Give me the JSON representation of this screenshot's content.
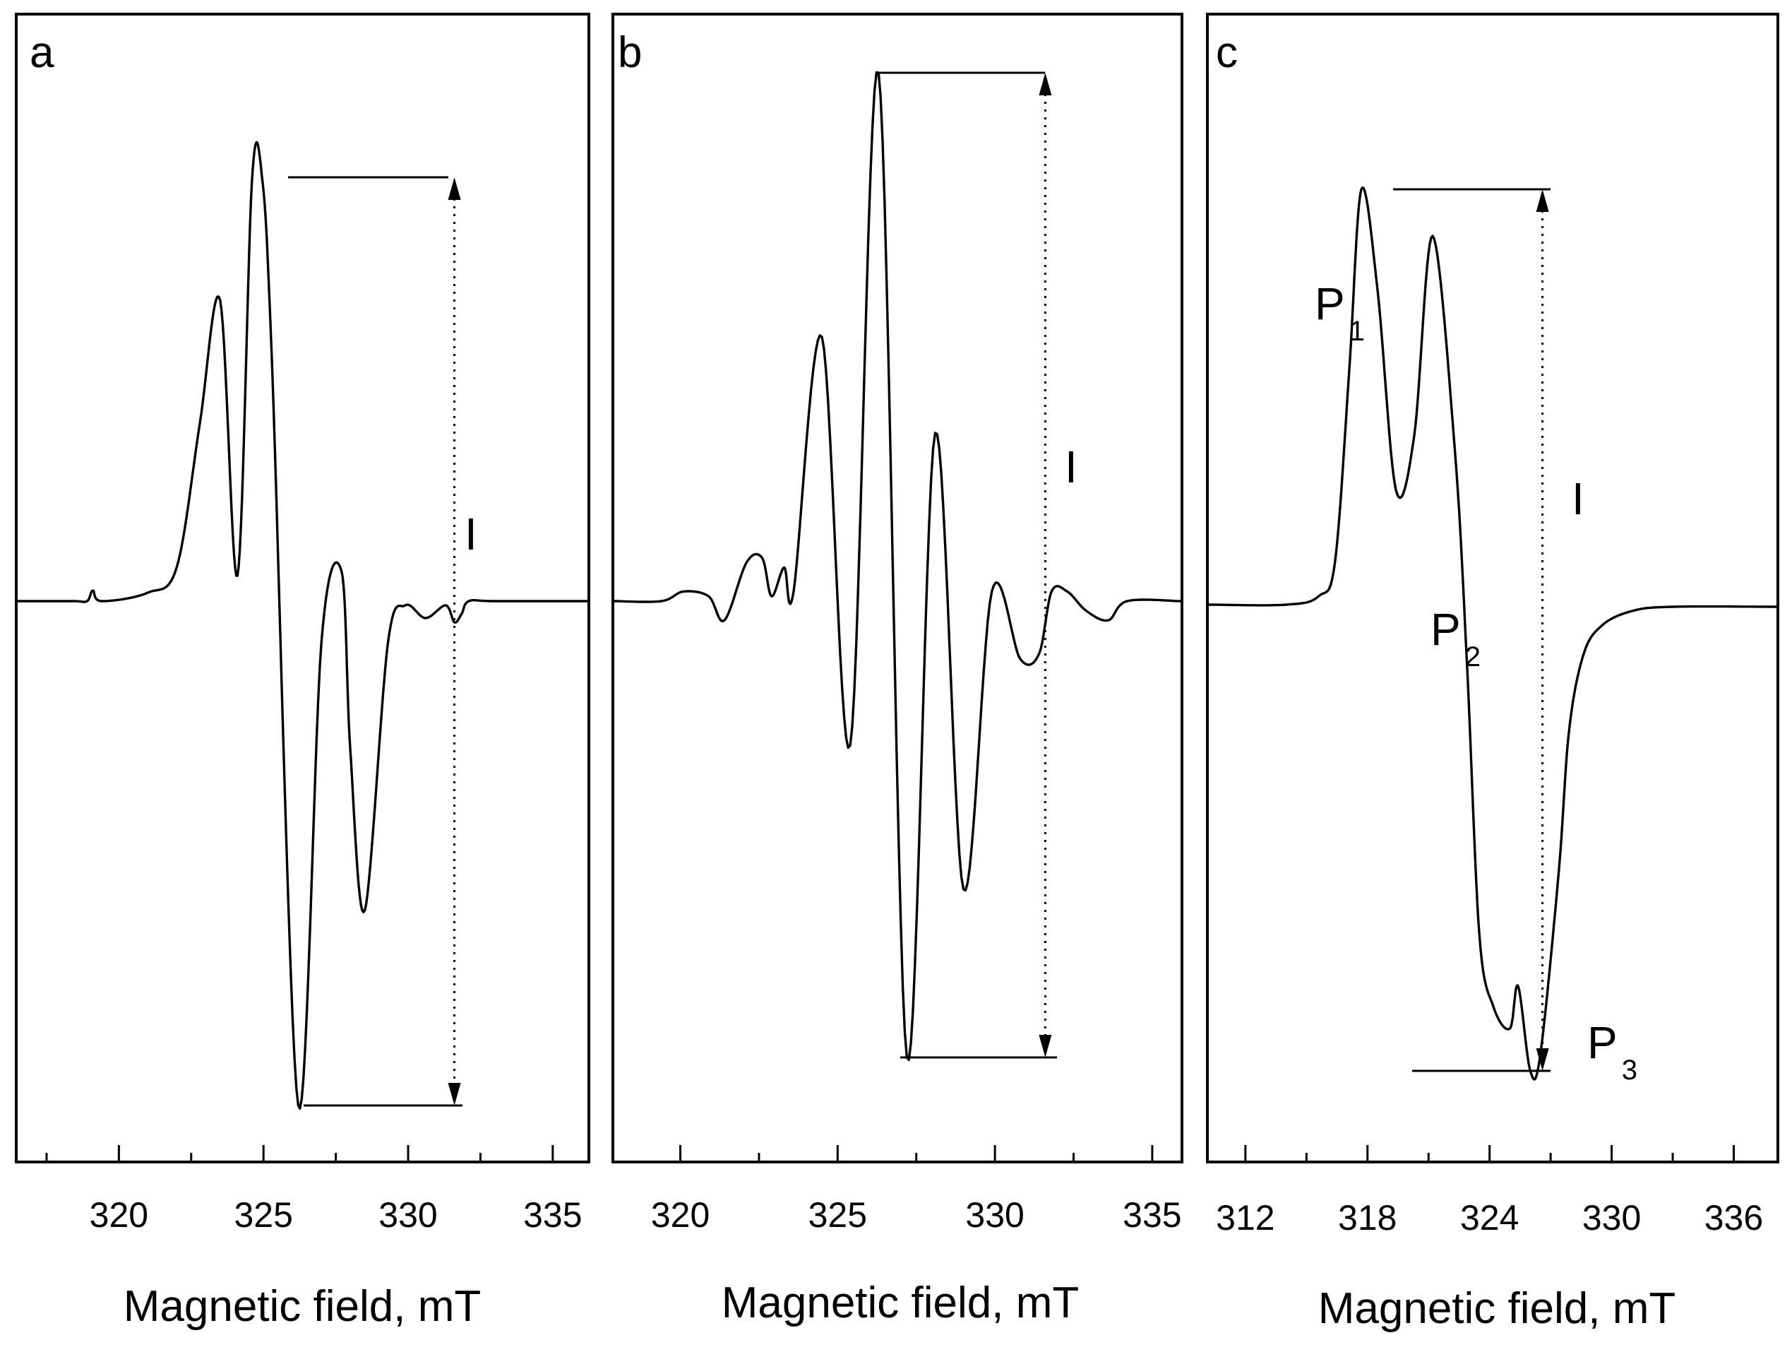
{
  "chart_data": [
    {
      "type": "line",
      "panel_label": "a",
      "xlabel": "Magnetic field, mT",
      "ylabel": "",
      "xlim": [
        316.5,
        336.2
      ],
      "xticks": [
        320,
        325,
        330,
        335
      ],
      "tick_labels": [
        "320",
        "325",
        "330",
        "335"
      ],
      "annotation": "I",
      "x": [
        316.5,
        318.4,
        318.9,
        319.1,
        319.4,
        321.0,
        322.0,
        322.8,
        323.5,
        324.1,
        324.6,
        324.95,
        325.3,
        326.2,
        327.0,
        327.7,
        328.0,
        328.5,
        329.3,
        329.9,
        330.6,
        331.3,
        331.6,
        331.85,
        332.1,
        333.0,
        336.2
      ],
      "y": [
        0,
        0,
        0,
        0.025,
        0,
        0.02,
        0.08,
        0.42,
        0.71,
        0.06,
        0.99,
        1.0,
        0.55,
        -1.19,
        -0.1,
        0.07,
        -0.35,
        -0.73,
        -0.1,
        -0.01,
        -0.04,
        -0.01,
        -0.05,
        -0.03,
        0,
        0,
        0
      ],
      "range_markers": {
        "x": 331.6,
        "top": 1.0,
        "bottom": -1.19
      }
    },
    {
      "type": "line",
      "panel_label": "b",
      "xlabel": "Magnetic field, mT",
      "ylabel": "",
      "xlim": [
        317.9,
        335.9
      ],
      "xticks": [
        320,
        325,
        330,
        335
      ],
      "tick_labels": [
        "320",
        "325",
        "330",
        "335"
      ],
      "annotation": "I",
      "x": [
        317.9,
        319.4,
        320.1,
        320.9,
        321.4,
        322.1,
        322.6,
        322.9,
        323.3,
        323.6,
        324.5,
        325.4,
        326.3,
        327.2,
        328.1,
        329.0,
        329.9,
        330.8,
        331.4,
        331.8,
        332.3,
        332.9,
        333.6,
        334.2,
        335.9
      ],
      "y": [
        0,
        0,
        0.02,
        0.01,
        -0.04,
        0.08,
        0.09,
        0.01,
        0.07,
        0.02,
        0.55,
        -0.3,
        1.1,
        -0.95,
        0.35,
        -0.6,
        0.02,
        -0.12,
        -0.11,
        0.02,
        0.02,
        -0.02,
        -0.04,
        0,
        0
      ],
      "range_markers": {
        "x": 331.6,
        "top": 1.1,
        "bottom": -0.95
      }
    },
    {
      "type": "line",
      "panel_label": "c",
      "xlabel": "Magnetic field, mT",
      "ylabel": "",
      "xlim": [
        310.2,
        338.1
      ],
      "xticks": [
        312,
        318,
        324,
        330,
        336
      ],
      "tick_labels": [
        "312",
        "318",
        "324",
        "330",
        "336"
      ],
      "annotation": "I",
      "x": [
        310.2,
        314.0,
        315.6,
        316.4,
        317.1,
        317.7,
        318.5,
        319.4,
        320.3,
        321.2,
        322.3,
        322.9,
        323.5,
        324.2,
        325.0,
        325.4,
        326.0,
        326.5,
        327.4,
        327.9,
        328.6,
        329.5,
        331.0,
        333.0,
        338.1
      ],
      "y": [
        0,
        0,
        0.02,
        0.1,
        0.55,
        0.98,
        0.74,
        0.27,
        0.4,
        0.87,
        0.36,
        -0.15,
        -0.78,
        -0.95,
        -1.0,
        -0.9,
        -1.1,
        -1.06,
        -0.63,
        -0.3,
        -0.12,
        -0.05,
        -0.015,
        -0.005,
        -0.005
      ],
      "range_markers": {
        "x": 326.6,
        "top": 0.98,
        "bottom": -1.1
      },
      "peak_labels": [
        {
          "name": "P",
          "sub": "1"
        },
        {
          "name": "P",
          "sub": "2"
        },
        {
          "name": "P",
          "sub": "3"
        }
      ]
    }
  ]
}
